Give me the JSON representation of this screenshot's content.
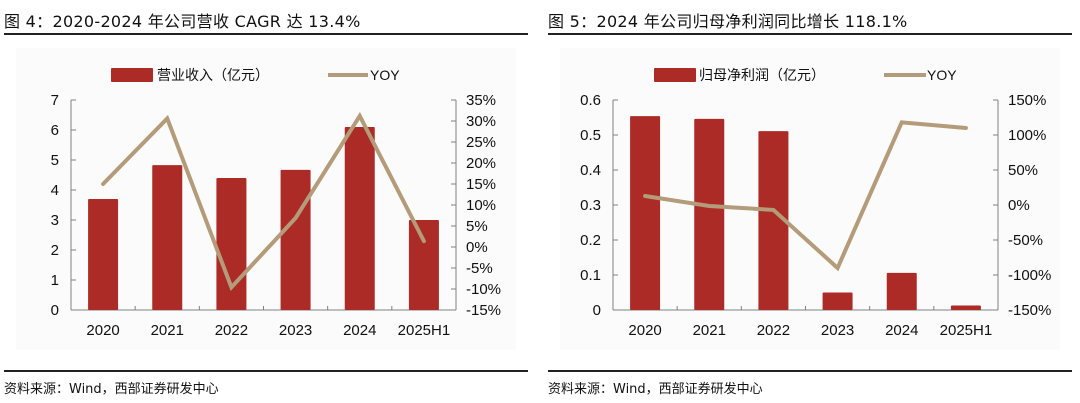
{
  "colors": {
    "bar": "#ad2b26",
    "line": "#b49b79",
    "axis": "#808080",
    "text": "#111111"
  },
  "charts": [
    {
      "title": "图 4：2020-2024 年公司营收 CAGR 达 13.4%",
      "source": "资料来源：Wind，西部证券研发中心",
      "legend": {
        "bar": "营业收入（亿元）",
        "line": "YOY"
      }
    },
    {
      "title": "图 5：2024 年公司归母净利润同比增长 118.1%",
      "source": "资料来源：Wind，西部证券研发中心",
      "legend": {
        "bar": "归母净利润（亿元）",
        "line": "YOY"
      }
    }
  ],
  "chart_data": [
    {
      "type": "bar",
      "title": "图 4：2020-2024 年公司营收 CAGR 达 13.4%",
      "categories": [
        "2020",
        "2021",
        "2022",
        "2023",
        "2024",
        "2025H1"
      ],
      "series": [
        {
          "name": "营业收入（亿元）",
          "type": "bar",
          "axis": "left",
          "values": [
            3.7,
            4.83,
            4.4,
            4.67,
            6.1,
            3.0
          ]
        },
        {
          "name": "YOY",
          "type": "line",
          "axis": "right",
          "values": [
            15.0,
            30.6,
            -9.6,
            6.9,
            31.2,
            1.4
          ]
        }
      ],
      "y_left": {
        "min": 0,
        "max": 7,
        "step": 1,
        "ticks": [
          "0",
          "1",
          "2",
          "3",
          "4",
          "5",
          "6",
          "7"
        ]
      },
      "y_right": {
        "min": -15,
        "max": 35,
        "step": 5,
        "ticks": [
          "-15%",
          "-10%",
          "-5%",
          "0%",
          "5%",
          "10%",
          "15%",
          "20%",
          "25%",
          "30%",
          "35%"
        ]
      },
      "legend_position": "top",
      "grid": false
    },
    {
      "type": "bar",
      "title": "图 5：2024 年公司归母净利润同比增长 118.1%",
      "categories": [
        "2020",
        "2021",
        "2022",
        "2023",
        "2024",
        "2025H1"
      ],
      "series": [
        {
          "name": "归母净利润（亿元）",
          "type": "bar",
          "axis": "left",
          "values": [
            0.554,
            0.546,
            0.511,
            0.05,
            0.106,
            0.013
          ]
        },
        {
          "name": "YOY",
          "type": "line",
          "axis": "right",
          "values": [
            12.9,
            -1.4,
            -7.0,
            -90.0,
            118.1,
            110.0
          ]
        }
      ],
      "y_left": {
        "min": 0,
        "max": 0.6,
        "step": 0.1,
        "ticks": [
          "0",
          "0.1",
          "0.2",
          "0.3",
          "0.4",
          "0.5",
          "0.6"
        ]
      },
      "y_right": {
        "min": -150,
        "max": 150,
        "step": 50,
        "ticks": [
          "-150%",
          "-100%",
          "-50%",
          "0%",
          "50%",
          "100%",
          "150%"
        ]
      },
      "legend_position": "top",
      "grid": false
    }
  ]
}
